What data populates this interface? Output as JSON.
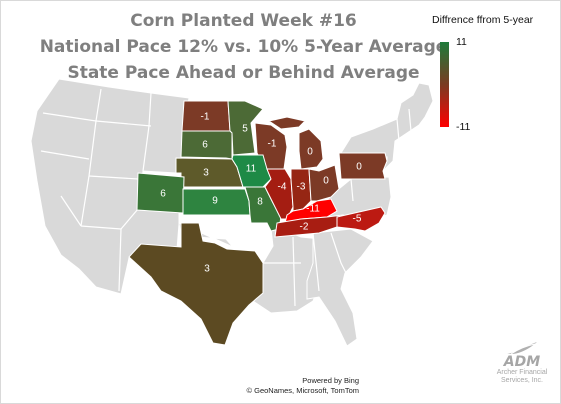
{
  "title": {
    "line1": "Corn Planted Week #16",
    "line2": "National Pace 12% vs. 10% 5-Year Average",
    "line3": "State Pace Ahead or Behind Average"
  },
  "legend": {
    "title": "Diffrence ffrom 5-year",
    "max_label": "11",
    "min_label": "-11",
    "max_color": "#1e7b3a",
    "mid_color": "#7a3b22",
    "min_color": "#ff0000"
  },
  "states": [
    {
      "id": "ND",
      "value": "-1"
    },
    {
      "id": "MN",
      "value": "5"
    },
    {
      "id": "SD",
      "value": "6"
    },
    {
      "id": "WI",
      "value": "-1"
    },
    {
      "id": "MI",
      "value": "0"
    },
    {
      "id": "NE",
      "value": "3"
    },
    {
      "id": "IA",
      "value": "11"
    },
    {
      "id": "CO",
      "value": "6"
    },
    {
      "id": "KS",
      "value": "9"
    },
    {
      "id": "MO",
      "value": "8"
    },
    {
      "id": "IL",
      "value": "-4"
    },
    {
      "id": "IN",
      "value": "-3"
    },
    {
      "id": "OH",
      "value": "0"
    },
    {
      "id": "PA",
      "value": "0"
    },
    {
      "id": "KY",
      "value": "-11"
    },
    {
      "id": "TN",
      "value": "-2"
    },
    {
      "id": "NC",
      "value": "-5"
    },
    {
      "id": "TX",
      "value": "3"
    }
  ],
  "credits": {
    "powered": "Powered by Bing",
    "sources": "© GeoNames, Microsoft, TomTom"
  },
  "logo": {
    "name": "ADM",
    "line1": "Archer Financial",
    "line2": "Services, Inc."
  }
}
